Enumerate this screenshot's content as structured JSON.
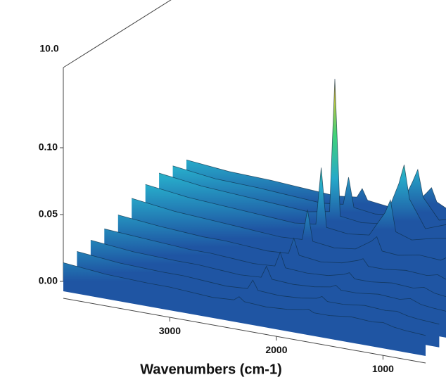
{
  "chart_data": {
    "type": "waterfall3d",
    "xlabel": "Wavenumbers (cm-1)",
    "corner_label": "10.0",
    "x": [
      4000,
      3600,
      3200,
      3000,
      2800,
      2600,
      2400,
      2350,
      2300,
      2100,
      1900,
      1750,
      1700,
      1650,
      1500,
      1300,
      1100,
      1000,
      900,
      800,
      600
    ],
    "xlim": [
      4000,
      600
    ],
    "xticks": [
      3000,
      2000,
      1000
    ],
    "ylim": [
      0,
      0.16
    ],
    "yticks": [
      {
        "value": 0,
        "label": "0.00"
      },
      {
        "value": 0.05,
        "label": "0.05"
      },
      {
        "value": 0.1,
        "label": "0.10"
      }
    ],
    "colormap": [
      "#1f55a3",
      "#27a9c9",
      "#3fd27a",
      "#d8c232",
      "#c0261c"
    ],
    "series": [
      {
        "values": [
          0.014,
          0.011,
          0.01,
          0.01,
          0.009,
          0.008,
          0.009,
          0.012,
          0.009,
          0.008,
          0.009,
          0.011,
          0.012,
          0.01,
          0.01,
          0.012,
          0.011,
          0.012,
          0.01,
          0.009,
          0.008
        ]
      },
      {
        "values": [
          0.016,
          0.013,
          0.012,
          0.012,
          0.011,
          0.01,
          0.011,
          0.018,
          0.011,
          0.01,
          0.011,
          0.013,
          0.015,
          0.012,
          0.012,
          0.014,
          0.013,
          0.014,
          0.012,
          0.011,
          0.01
        ]
      },
      {
        "values": [
          0.018,
          0.015,
          0.014,
          0.014,
          0.013,
          0.012,
          0.013,
          0.022,
          0.013,
          0.012,
          0.013,
          0.015,
          0.017,
          0.014,
          0.014,
          0.016,
          0.015,
          0.017,
          0.014,
          0.013,
          0.012
        ]
      },
      {
        "values": [
          0.02,
          0.018,
          0.016,
          0.016,
          0.015,
          0.014,
          0.015,
          0.026,
          0.015,
          0.014,
          0.015,
          0.018,
          0.02,
          0.016,
          0.016,
          0.018,
          0.017,
          0.019,
          0.016,
          0.015,
          0.014
        ]
      },
      {
        "values": [
          0.024,
          0.021,
          0.019,
          0.019,
          0.018,
          0.017,
          0.018,
          0.03,
          0.018,
          0.016,
          0.018,
          0.022,
          0.024,
          0.019,
          0.019,
          0.021,
          0.02,
          0.022,
          0.019,
          0.018,
          0.017
        ]
      },
      {
        "values": [
          0.03,
          0.026,
          0.024,
          0.023,
          0.022,
          0.021,
          0.022,
          0.045,
          0.022,
          0.02,
          0.022,
          0.03,
          0.034,
          0.024,
          0.023,
          0.026,
          0.025,
          0.03,
          0.024,
          0.022,
          0.021
        ]
      },
      {
        "values": [
          0.034,
          0.03,
          0.028,
          0.027,
          0.026,
          0.025,
          0.027,
          0.07,
          0.026,
          0.024,
          0.026,
          0.045,
          0.055,
          0.032,
          0.028,
          0.032,
          0.035,
          0.042,
          0.03,
          0.027,
          0.025
        ]
      },
      {
        "values": [
          0.036,
          0.032,
          0.03,
          0.029,
          0.028,
          0.027,
          0.03,
          0.13,
          0.028,
          0.026,
          0.028,
          0.06,
          0.075,
          0.05,
          0.03,
          0.036,
          0.04,
          0.05,
          0.034,
          0.03,
          0.028
        ]
      },
      {
        "values": [
          0.035,
          0.031,
          0.03,
          0.029,
          0.028,
          0.027,
          0.029,
          0.05,
          0.028,
          0.026,
          0.028,
          0.055,
          0.065,
          0.045,
          0.03,
          0.034,
          0.038,
          0.045,
          0.033,
          0.03,
          0.028
        ]
      },
      {
        "values": [
          0.033,
          0.03,
          0.029,
          0.028,
          0.027,
          0.026,
          0.028,
          0.035,
          0.027,
          0.025,
          0.027,
          0.04,
          0.045,
          0.035,
          0.029,
          0.032,
          0.033,
          0.036,
          0.031,
          0.029,
          0.027
        ]
      }
    ]
  }
}
